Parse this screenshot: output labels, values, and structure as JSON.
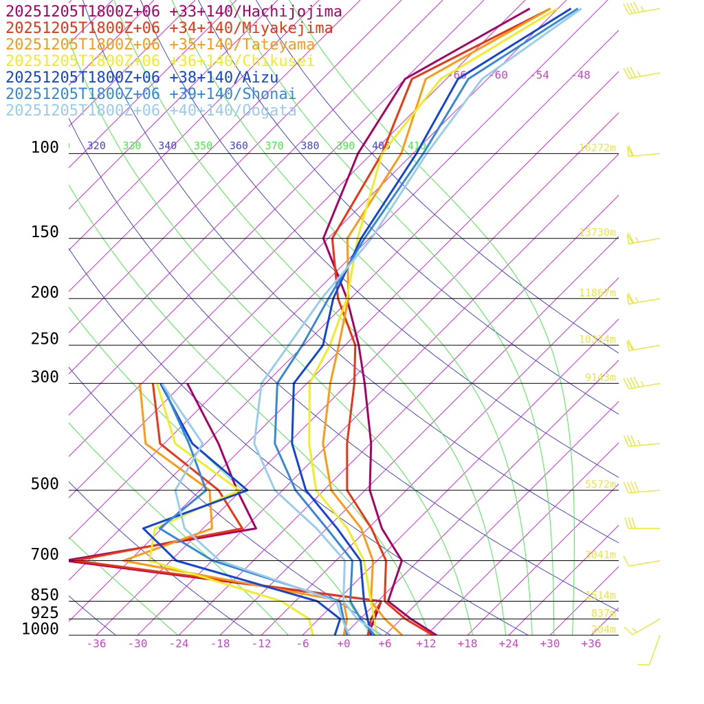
{
  "chart_data": {
    "type": "skewt",
    "xlim": [
      -40,
      40
    ],
    "ylim": [
      1000,
      48
    ],
    "xticks": [
      -36,
      -30,
      -24,
      -18,
      -12,
      -6,
      {
        "value": 0,
        "label": "+0"
      },
      {
        "value": 6,
        "label": "+6"
      },
      {
        "value": 12,
        "label": "+12"
      },
      {
        "value": 18,
        "label": "+18"
      },
      {
        "value": 24,
        "label": "+24"
      },
      {
        "value": 30,
        "label": "+30"
      },
      {
        "value": 36,
        "label": "+36"
      }
    ],
    "yticks": [
      100,
      150,
      200,
      250,
      300,
      500,
      700,
      850,
      925,
      1000
    ],
    "height_labels": [
      "16272m",
      "13730m",
      "11867m",
      "10324m",
      "9143m",
      "5572m",
      "3041m",
      "1514m",
      "837m",
      "204m"
    ],
    "isotherms": [
      -132,
      -126,
      -120,
      -114,
      -108,
      -102,
      -96,
      -90,
      -84,
      -78,
      -72,
      -66,
      -60,
      -54,
      -48,
      -42,
      -36,
      -30,
      -24,
      -18,
      -12,
      -6,
      0,
      6,
      12,
      18,
      24,
      30,
      36
    ],
    "isotherm_labels": [
      -66,
      -60,
      -54,
      -48
    ],
    "dry_adiabats": [
      240,
      260,
      280,
      300,
      320,
      340,
      360,
      380,
      400
    ],
    "moist_adiabats": [
      250,
      270,
      290,
      310,
      330,
      350,
      370,
      390,
      410
    ],
    "pressure_levels": [
      1000,
      925,
      850,
      700,
      600,
      500,
      400,
      300,
      250,
      200,
      150,
      100,
      70,
      50
    ],
    "dewpoint_levels": [
      1000,
      925,
      850,
      700,
      600,
      500,
      400,
      300
    ],
    "series": [
      {
        "name": "20251205T1800Z+06 +33+140/Hachijojima",
        "color": "#aa0066",
        "temperature": [
          13.5,
          7.4,
          1.5,
          -2.4,
          -10,
          -17.3,
          -23.9,
          -33.6,
          -40,
          -48.5,
          -60.7,
          -68,
          -72,
          -64.1
        ],
        "dewpoint": [
          3.5,
          2.1,
          0.5,
          -51.4,
          -28.3,
          -36.6,
          -46.1,
          -59.4
        ]
      },
      {
        "name": "20251205T1800Z+06 +34+140/Miyakejima",
        "color": "#ee3311",
        "temperature": [
          13,
          6.6,
          1,
          -4.7,
          -11.5,
          -20.6,
          -27.4,
          -35.1,
          -40.5,
          -49.8,
          -59.4,
          -64.5,
          -71,
          -61.1
        ],
        "dewpoint": [
          3.5,
          1.6,
          0.5,
          -49.9,
          -30.3,
          -39.3,
          -54.6,
          -64.4
        ]
      },
      {
        "name": "20251205T1800Z+06 +35+140/Tateyama",
        "color": "#ff9911",
        "temperature": [
          8.5,
          3.6,
          -1,
          -6.6,
          -13,
          -22.9,
          -30.9,
          -38.6,
          -42.9,
          -48.3,
          -57.2,
          -61.7,
          -69,
          -61.1
        ],
        "dewpoint": [
          0,
          -1.9,
          -5,
          -42.9,
          -34.7,
          -40.6,
          -56.7,
          -66.3
        ]
      },
      {
        "name": "20251205T1800Z+06 +36+140/Chikusei",
        "color": "#eeee22",
        "temperature": [
          4.8,
          2.1,
          -1,
          -7.9,
          -15,
          -25.1,
          -32.9,
          -41.6,
          -44.2,
          -48.5,
          -55.7,
          -64.5,
          -66.8,
          -60.1
        ],
        "dewpoint": [
          -4.5,
          -7.4,
          -14,
          -39.1,
          -43,
          -36.3,
          -52.4,
          -63.8
        ]
      },
      {
        "name": "20251205T1800Z+06 +38+140/Aizu",
        "color": "#1144dd",
        "temperature": [
          4,
          1.1,
          -2,
          -8.4,
          -16.5,
          -26.6,
          -35.4,
          -43.9,
          -45.2,
          -50.5,
          -55.2,
          -59.5,
          -64.3,
          -58.1
        ],
        "dewpoint": [
          -1.3,
          -2.9,
          -8.8,
          -35.2,
          -44.7,
          -35.1,
          -49.9,
          -63.3
        ]
      },
      {
        "name": "20251205T1800Z+06 +39+140/Shonai",
        "color": "#3388dd",
        "temperature": [
          4.5,
          0.1,
          -4,
          -9.6,
          -18,
          -28.1,
          -37.9,
          -46.3,
          -48.2,
          -51.2,
          -54.7,
          -58.5,
          -62.8,
          -57.1
        ],
        "dewpoint": [
          0.5,
          -2.4,
          -5.5,
          -29.9,
          -42.3,
          -41.1,
          -50.4,
          -63.1
        ]
      },
      {
        "name": "20251205T1800Z+06 +40+140/Oogata",
        "color": "#99ccee",
        "temperature": [
          5.5,
          -0.4,
          -5,
          -10.7,
          -19.5,
          -31.1,
          -40.9,
          -48.6,
          -50.2,
          -52.2,
          -53.7,
          -58,
          -60.8,
          -56.6
        ],
        "dewpoint": [
          0.8,
          -2.6,
          -6,
          -28.9,
          -38.7,
          -45.6,
          -48.4,
          -63.1
        ]
      }
    ],
    "wind": {
      "color": "#e8e830",
      "pressure": [
        50,
        68,
        100,
        150,
        200,
        250,
        300,
        400,
        500,
        600,
        700,
        925,
        1000
      ],
      "direction": [
        260,
        260,
        265,
        260,
        260,
        260,
        260,
        265,
        265,
        270,
        260,
        240,
        200
      ],
      "speed": [
        45,
        35,
        60,
        65,
        65,
        60,
        45,
        35,
        40,
        30,
        10,
        15,
        10
      ]
    }
  }
}
